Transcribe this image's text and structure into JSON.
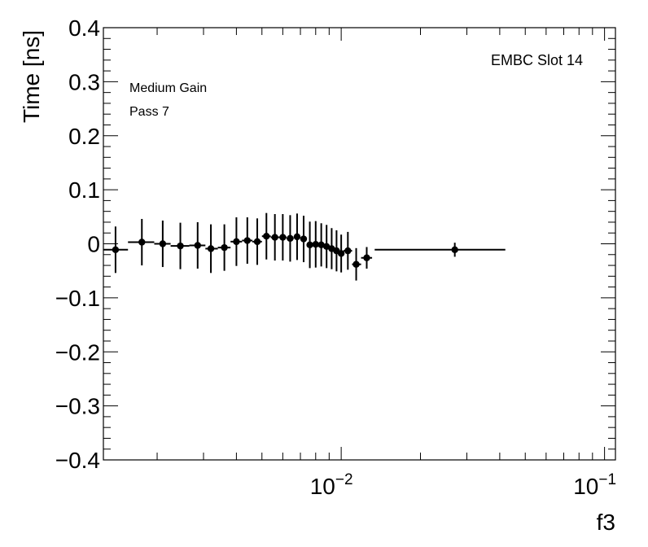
{
  "chart_data": {
    "type": "scatter",
    "xlabel": "f3",
    "ylabel": "Time [ns]",
    "xscale": "log",
    "xlim": [
      0.00125,
      0.11
    ],
    "ylim": [
      -0.4,
      0.4
    ],
    "grid": false,
    "annotations": [
      "EMBC Slot 14",
      "Medium Gain",
      "Pass 7"
    ],
    "ytick_labels": [
      "0.4",
      "0.3",
      "0.2",
      "0.1",
      "0",
      "−0.1",
      "−0.2",
      "−0.3",
      "−0.4"
    ],
    "ytick_values": [
      0.4,
      0.3,
      0.2,
      0.1,
      0,
      -0.1,
      -0.2,
      -0.3,
      -0.4
    ],
    "xtick_labels": [
      {
        "base": "10",
        "exp": "−2",
        "value": 0.01
      },
      {
        "base": "10",
        "exp": "−1",
        "value": 0.1
      }
    ],
    "points": [
      {
        "x": 0.00139,
        "xlo": 0.00125,
        "xhi": 0.00155,
        "y": -0.011,
        "yerr": 0.043
      },
      {
        "x": 0.00175,
        "xlo": 0.00155,
        "xhi": 0.00195,
        "y": 0.003,
        "yerr": 0.043
      },
      {
        "x": 0.0021,
        "xlo": 0.00195,
        "xhi": 0.00225,
        "y": 0.0,
        "yerr": 0.043
      },
      {
        "x": 0.00245,
        "xlo": 0.00225,
        "xhi": 0.00265,
        "y": -0.004,
        "yerr": 0.043
      },
      {
        "x": 0.00285,
        "xlo": 0.00265,
        "xhi": 0.00305,
        "y": -0.003,
        "yerr": 0.043
      },
      {
        "x": 0.0032,
        "xlo": 0.00305,
        "xhi": 0.0034,
        "y": -0.009,
        "yerr": 0.045
      },
      {
        "x": 0.0036,
        "xlo": 0.0034,
        "xhi": 0.0038,
        "y": -0.007,
        "yerr": 0.043
      },
      {
        "x": 0.004,
        "xlo": 0.0038,
        "xhi": 0.0042,
        "y": 0.004,
        "yerr": 0.045
      },
      {
        "x": 0.0044,
        "xlo": 0.0042,
        "xhi": 0.0046,
        "y": 0.006,
        "yerr": 0.043
      },
      {
        "x": 0.0048,
        "xlo": 0.0046,
        "xhi": 0.005,
        "y": 0.004,
        "yerr": 0.043
      },
      {
        "x": 0.0052,
        "xlo": 0.005,
        "xhi": 0.0054,
        "y": 0.014,
        "yerr": 0.043
      },
      {
        "x": 0.0056,
        "xlo": 0.0054,
        "xhi": 0.0058,
        "y": 0.012,
        "yerr": 0.043
      },
      {
        "x": 0.006,
        "xlo": 0.0058,
        "xhi": 0.0062,
        "y": 0.012,
        "yerr": 0.043
      },
      {
        "x": 0.0064,
        "xlo": 0.0062,
        "xhi": 0.0066,
        "y": 0.01,
        "yerr": 0.043
      },
      {
        "x": 0.0068,
        "xlo": 0.0066,
        "xhi": 0.007,
        "y": 0.013,
        "yerr": 0.043
      },
      {
        "x": 0.0072,
        "xlo": 0.007,
        "xhi": 0.0074,
        "y": 0.009,
        "yerr": 0.043
      },
      {
        "x": 0.0076,
        "xlo": 0.0074,
        "xhi": 0.0078,
        "y": -0.002,
        "yerr": 0.043
      },
      {
        "x": 0.008,
        "xlo": 0.0078,
        "xhi": 0.0082,
        "y": -0.001,
        "yerr": 0.043
      },
      {
        "x": 0.0084,
        "xlo": 0.0082,
        "xhi": 0.0086,
        "y": -0.002,
        "yerr": 0.04
      },
      {
        "x": 0.0088,
        "xlo": 0.0086,
        "xhi": 0.009,
        "y": -0.005,
        "yerr": 0.04
      },
      {
        "x": 0.0092,
        "xlo": 0.009,
        "xhi": 0.0094,
        "y": -0.009,
        "yerr": 0.038
      },
      {
        "x": 0.0096,
        "xlo": 0.0094,
        "xhi": 0.0098,
        "y": -0.013,
        "yerr": 0.038
      },
      {
        "x": 0.01,
        "xlo": 0.0098,
        "xhi": 0.0102,
        "y": -0.018,
        "yerr": 0.035
      },
      {
        "x": 0.0106,
        "xlo": 0.0102,
        "xhi": 0.011,
        "y": -0.013,
        "yerr": 0.035
      },
      {
        "x": 0.0114,
        "xlo": 0.011,
        "xhi": 0.0119,
        "y": -0.038,
        "yerr": 0.03
      },
      {
        "x": 0.0125,
        "xlo": 0.0119,
        "xhi": 0.0131,
        "y": -0.026,
        "yerr": 0.02
      },
      {
        "x": 0.027,
        "xlo": 0.0134,
        "xhi": 0.042,
        "y": -0.011,
        "yerr": 0.013
      }
    ]
  }
}
